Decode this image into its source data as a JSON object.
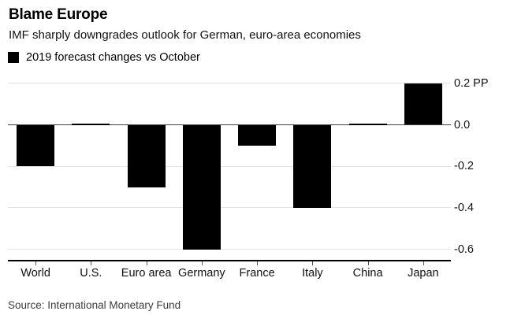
{
  "header": {
    "title": "Blame Europe",
    "subtitle": "IMF sharply downgrades outlook for German, euro-area economies"
  },
  "legend": {
    "label": "2019 forecast changes vs October",
    "swatch_color": "#000000"
  },
  "chart_data": {
    "type": "bar",
    "title": "Blame Europe",
    "subtitle": "IMF sharply downgrades outlook for German, euro-area economies",
    "legend_entries": [
      "2019 forecast changes vs October"
    ],
    "legend_position": "top-left",
    "categories": [
      "World",
      "U.S.",
      "Euro area",
      "Germany",
      "France",
      "Italy",
      "China",
      "Japan"
    ],
    "values": [
      -0.2,
      0.0,
      -0.3,
      -0.6,
      -0.1,
      -0.4,
      0.0,
      0.2
    ],
    "unit": "PP",
    "ylim": [
      -0.66,
      0.22
    ],
    "yticks": [
      0.2,
      0.0,
      -0.2,
      -0.4,
      -0.6
    ],
    "ytick_labels": [
      "0.2 PP",
      "0.0",
      "-0.2",
      "-0.4",
      "-0.6"
    ],
    "grid": true,
    "bar_color": "#000000",
    "xlabel": "",
    "ylabel": ""
  },
  "footer": {
    "source": "Source: International Monetary Fund"
  }
}
